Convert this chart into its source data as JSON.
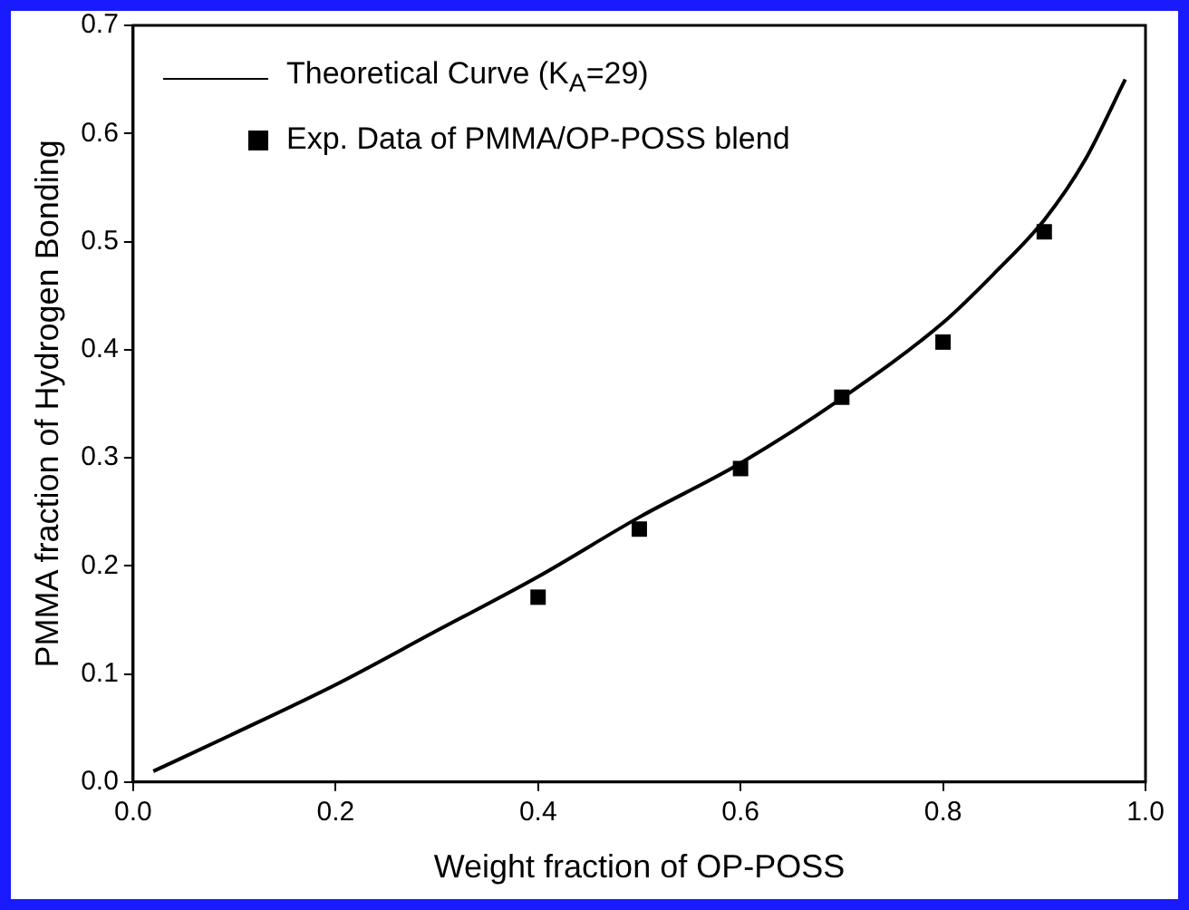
{
  "chart_data": {
    "type": "line",
    "xlabel": "Weight fraction of OP-POSS",
    "ylabel": "PMMA fraction of Hydrogen Bonding",
    "xlim": [
      0.0,
      1.0
    ],
    "xticks": [
      {
        "value": 0,
        "label": "0.0"
      },
      0.2,
      0.4,
      0.6,
      0.8,
      {
        "value": 1,
        "label": "1.0"
      }
    ],
    "ylim": [
      0.0,
      0.7
    ],
    "yticks": [
      {
        "value": 0,
        "label": "0.0"
      },
      0.1,
      0.2,
      0.3,
      0.4,
      0.5,
      0.6,
      0.7
    ],
    "grid": false,
    "legend": "top left",
    "series": [
      {
        "name": "Theoretical Curve  (K$_{A}$=29)",
        "type": "line",
        "color": "#000000",
        "marker": "none",
        "line_style": "solid",
        "x": [
          0.02,
          0.1,
          0.2,
          0.3,
          0.4,
          0.5,
          0.6,
          0.7,
          0.8,
          0.85,
          0.9,
          0.94,
          0.98
        ],
        "values": [
          0.01,
          0.045,
          0.09,
          0.14,
          0.19,
          0.245,
          0.295,
          0.355,
          0.425,
          0.47,
          0.52,
          0.575,
          0.65
        ]
      },
      {
        "name": "Exp. Data of PMMA/OP-POSS blend",
        "type": "scatter",
        "color": "#000000",
        "marker": "square",
        "x": [
          0.4,
          0.5,
          0.6,
          0.7,
          0.8,
          0.9
        ],
        "values": [
          0.171,
          0.234,
          0.29,
          0.356,
          0.407,
          0.509
        ]
      }
    ]
  }
}
